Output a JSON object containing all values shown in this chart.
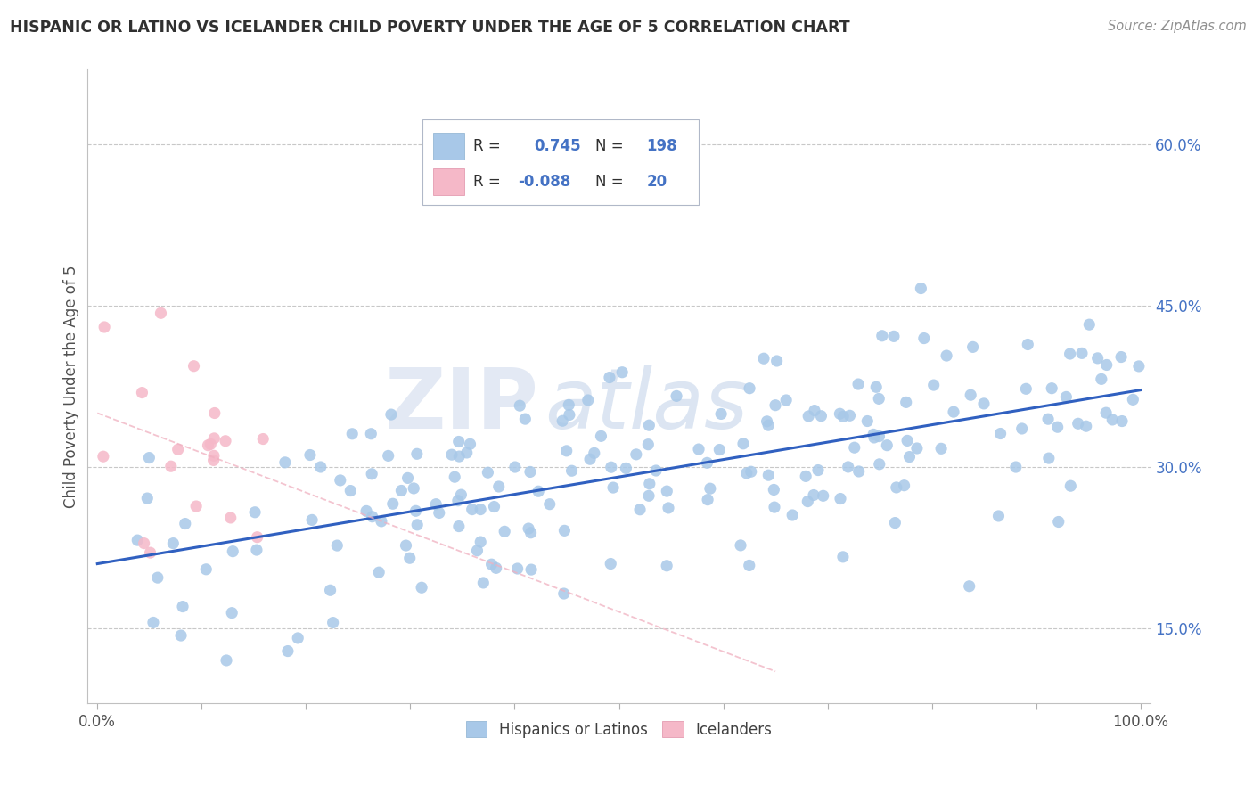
{
  "title": "HISPANIC OR LATINO VS ICELANDER CHILD POVERTY UNDER THE AGE OF 5 CORRELATION CHART",
  "source": "Source: ZipAtlas.com",
  "ylabel": "Child Poverty Under the Age of 5",
  "r_blue": 0.745,
  "n_blue": 198,
  "r_pink": -0.088,
  "n_pink": 20,
  "legend_labels": [
    "Hispanics or Latinos",
    "Icelanders"
  ],
  "blue_color": "#a8c8e8",
  "pink_color": "#f5b8c8",
  "blue_line_color": "#3060c0",
  "pink_line_color": "#f0b0c0",
  "title_color": "#303030",
  "source_color": "#909090",
  "legend_text_color": "#4472c4",
  "background_color": "#ffffff",
  "grid_color": "#c8c8c8",
  "xlim": [
    -0.01,
    1.01
  ],
  "ylim": [
    0.08,
    0.67
  ],
  "yticks": [
    0.15,
    0.3,
    0.45,
    0.6
  ],
  "ytick_labels": [
    "15.0%",
    "30.0%",
    "45.0%",
    "60.0%"
  ],
  "xtick_minor": [
    0.0,
    0.1,
    0.2,
    0.3,
    0.4,
    0.5,
    0.6,
    0.7,
    0.8,
    0.9,
    1.0
  ],
  "xtick_label_positions": [
    0.0,
    1.0
  ],
  "xtick_label_values": [
    "0.0%",
    "100.0%"
  ]
}
